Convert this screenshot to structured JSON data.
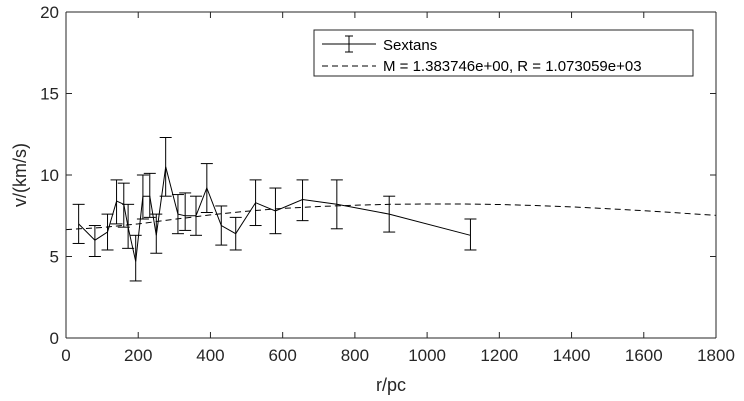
{
  "chart_data": {
    "type": "line",
    "title": "",
    "xlabel": "r/pc",
    "ylabel": "v/(km/s)",
    "xlim": [
      0,
      1800
    ],
    "ylim": [
      0,
      20
    ],
    "xticks": [
      0,
      200,
      400,
      600,
      800,
      1000,
      1200,
      1400,
      1600,
      1800
    ],
    "yticks": [
      0,
      5,
      10,
      15,
      20
    ],
    "grid": false,
    "legend_position": "top-right",
    "series": [
      {
        "name": "Sextans",
        "style": "solid-errorbar",
        "color": "#000000",
        "points": [
          {
            "x": 35,
            "v": 7.0,
            "lo": 5.8,
            "hi": 8.2
          },
          {
            "x": 80,
            "v": 6.0,
            "lo": 5.0,
            "hi": 6.9
          },
          {
            "x": 115,
            "v": 6.5,
            "lo": 5.4,
            "hi": 7.6
          },
          {
            "x": 140,
            "v": 8.4,
            "lo": 7.0,
            "hi": 9.7
          },
          {
            "x": 160,
            "v": 8.2,
            "lo": 6.8,
            "hi": 9.5
          },
          {
            "x": 172,
            "v": 6.8,
            "lo": 5.5,
            "hi": 8.2
          },
          {
            "x": 193,
            "v": 4.7,
            "lo": 3.5,
            "hi": 6.3
          },
          {
            "x": 213,
            "v": 8.7,
            "lo": 7.3,
            "hi": 10.0
          },
          {
            "x": 232,
            "v": 8.7,
            "lo": 7.4,
            "hi": 10.1
          },
          {
            "x": 250,
            "v": 6.3,
            "lo": 5.2,
            "hi": 7.6
          },
          {
            "x": 276,
            "v": 10.5,
            "lo": 8.7,
            "hi": 12.3
          },
          {
            "x": 310,
            "v": 7.6,
            "lo": 6.4,
            "hi": 8.8
          },
          {
            "x": 330,
            "v": 7.5,
            "lo": 6.6,
            "hi": 8.9
          },
          {
            "x": 360,
            "v": 7.5,
            "lo": 6.3,
            "hi": 8.7
          },
          {
            "x": 390,
            "v": 9.2,
            "lo": 7.7,
            "hi": 10.7
          },
          {
            "x": 430,
            "v": 6.9,
            "lo": 5.7,
            "hi": 8.1
          },
          {
            "x": 470,
            "v": 6.4,
            "lo": 5.4,
            "hi": 7.4
          },
          {
            "x": 525,
            "v": 8.3,
            "lo": 6.9,
            "hi": 9.7
          },
          {
            "x": 580,
            "v": 7.8,
            "lo": 6.4,
            "hi": 9.2
          },
          {
            "x": 655,
            "v": 8.5,
            "lo": 7.2,
            "hi": 9.7
          },
          {
            "x": 750,
            "v": 8.2,
            "lo": 6.7,
            "hi": 9.7
          },
          {
            "x": 895,
            "v": 7.6,
            "lo": 6.5,
            "hi": 8.7
          },
          {
            "x": 1120,
            "v": 6.3,
            "lo": 5.4,
            "hi": 7.3
          }
        ]
      },
      {
        "name": "M = 1.383746e+00, R = 1.073059e+03",
        "style": "dashed",
        "color": "#000000",
        "x": [
          0,
          100,
          200,
          300,
          400,
          500,
          600,
          700,
          800,
          900,
          1000,
          1100,
          1200,
          1300,
          1400,
          1500,
          1600,
          1700,
          1800
        ],
        "y": [
          6.65,
          6.78,
          7.0,
          7.28,
          7.55,
          7.78,
          7.95,
          8.07,
          8.15,
          8.2,
          8.22,
          8.22,
          8.19,
          8.13,
          8.04,
          7.93,
          7.81,
          7.67,
          7.52
        ]
      }
    ]
  }
}
